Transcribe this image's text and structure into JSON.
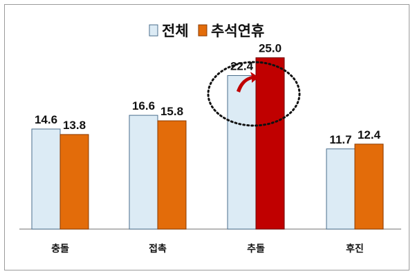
{
  "chart_data": {
    "type": "bar",
    "categories": [
      "충돌",
      "접촉",
      "추돌",
      "후진"
    ],
    "series": [
      {
        "name": "전체",
        "values": [
          14.6,
          16.6,
          22.4,
          11.7
        ],
        "color": "#dcebf5",
        "stroke": "#4a6e8c"
      },
      {
        "name": "추석연휴",
        "values": [
          13.8,
          15.8,
          25.0,
          12.4
        ],
        "color": "#e36c0a",
        "stroke": "#8a3a00"
      }
    ],
    "highlight": {
      "category_index": 2,
      "color": "#c00000",
      "arrow_color": "#c00000"
    },
    "value_labels": [
      [
        "14.6",
        "16.6",
        "22.4",
        "11.7"
      ],
      [
        "13.8",
        "15.8",
        "25.0",
        "12.4"
      ]
    ],
    "ylim": [
      0,
      30
    ],
    "grid": false,
    "legend_position": "top-center"
  }
}
